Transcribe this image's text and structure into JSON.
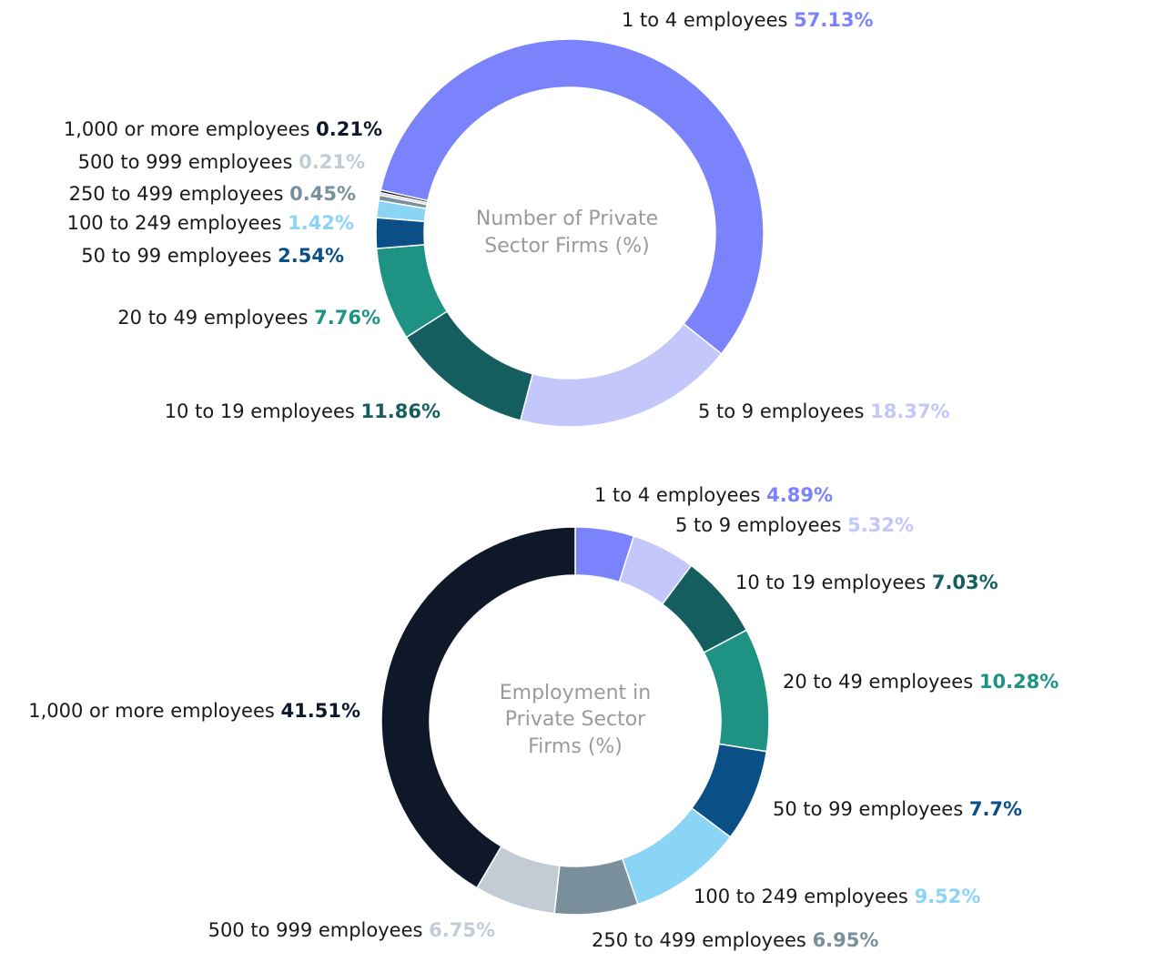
{
  "chart_data": [
    {
      "type": "donut",
      "center_label": [
        "Number of Private",
        "Sector Firms (%)"
      ],
      "categories": [
        "1 to 4 employees",
        "5 to 9 employees",
        "10 to 19 employees",
        "20 to 49 employees",
        "50 to 99 employees",
        "100 to 249 employees",
        "250 to 499 employees",
        "500 to 999 employees",
        "1,000 or more employees"
      ],
      "values": [
        57.13,
        18.37,
        11.86,
        7.76,
        2.54,
        1.42,
        0.45,
        0.21,
        0.21
      ],
      "value_labels": [
        "57.13%",
        "18.37%",
        "11.86%",
        "7.76%",
        "2.54%",
        "1.42%",
        "0.45%",
        "0.21%",
        "0.21%"
      ],
      "colors": [
        "#7b83fc",
        "#c3c7fc",
        "#155e5f",
        "#1e9384",
        "#0a4f86",
        "#8ad4f5",
        "#7a8f9c",
        "#c3ccd5",
        "#0e1828"
      ]
    },
    {
      "type": "donut",
      "center_label": [
        "Employment in",
        "Private Sector",
        "Firms (%)"
      ],
      "categories": [
        "1 to 4 employees",
        "5 to 9 employees",
        "10 to 19 employees",
        "20 to 49 employees",
        "50 to 99 employees",
        "100 to 249 employees",
        "250 to 499 employees",
        "500 to 999 employees",
        "1,000 or more employees"
      ],
      "values": [
        4.89,
        5.32,
        7.03,
        10.28,
        7.7,
        9.52,
        6.95,
        6.75,
        41.51
      ],
      "value_labels": [
        "4.89%",
        "5.32%",
        "7.03%",
        "10.28%",
        "7.7%",
        "9.52%",
        "6.95%",
        "6.75%",
        "41.51%"
      ],
      "colors": [
        "#7b83fc",
        "#c3c7fc",
        "#155e5f",
        "#1e9384",
        "#0a4f86",
        "#8ad4f5",
        "#7a8f9c",
        "#c3ccd5",
        "#0e1828"
      ]
    }
  ]
}
